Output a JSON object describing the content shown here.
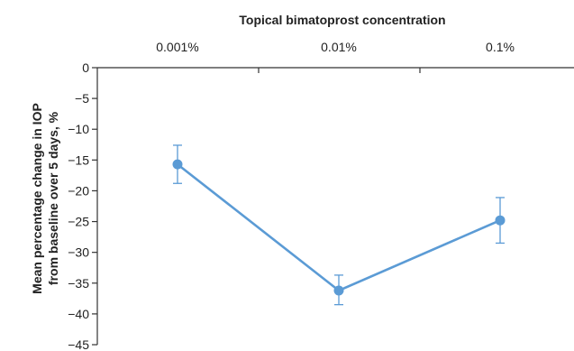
{
  "chart_data": {
    "type": "line",
    "title": "",
    "xlabel": "Topical bimatoprost concentration",
    "ylabel_lines": [
      "Mean percentage change in IOP",
      "from baseline over 5 days, %"
    ],
    "categories": [
      "0.001%",
      "0.01%",
      "0.1%"
    ],
    "x_axis_position": "top",
    "series": [
      {
        "values": [
          -15.7,
          -36.2,
          -24.8
        ],
        "error_low": [
          -18.8,
          -38.5,
          -28.5
        ],
        "error_high": [
          -12.6,
          -33.7,
          -21.1
        ],
        "color": "#5B9BD5"
      }
    ],
    "ylim": [
      -45,
      0
    ],
    "yticks": [
      0,
      -5,
      -10,
      -15,
      -20,
      -25,
      -30,
      -35,
      -40,
      -45
    ],
    "grid": false,
    "legend": "none"
  }
}
